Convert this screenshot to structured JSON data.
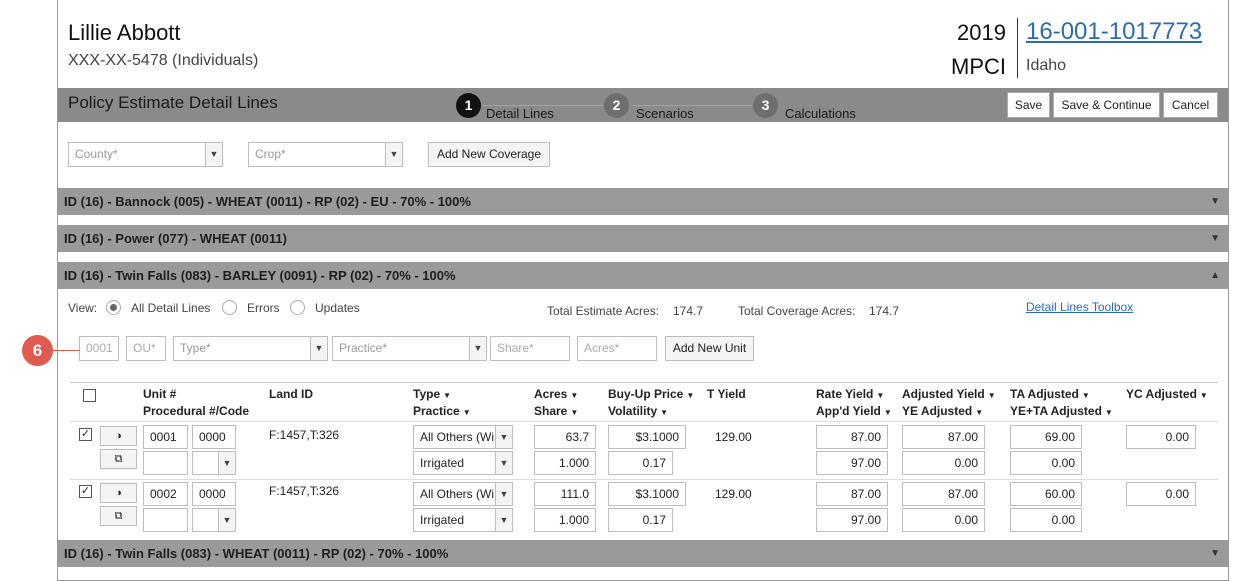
{
  "client": {
    "name": "Lillie Abbott",
    "ssn": "XXX-XX-5478 (Individuals)",
    "year": "2019",
    "plan": "MPCI",
    "policy_number": "16-001-1017773",
    "state": "Idaho"
  },
  "title_bar": {
    "title": "Policy Estimate Detail Lines",
    "steps": [
      {
        "num": "1",
        "label": "Detail Lines",
        "active": true
      },
      {
        "num": "2",
        "label": "Scenarios",
        "active": false
      },
      {
        "num": "3",
        "label": "Calculations",
        "active": false
      }
    ],
    "buttons": {
      "save": "Save",
      "save_continue": "Save & Continue",
      "cancel": "Cancel"
    }
  },
  "coverage_form": {
    "county_placeholder": "County*",
    "crop_placeholder": "Crop*",
    "add_coverage": "Add New Coverage"
  },
  "accordions": {
    "a1": "ID (16) - Bannock (005) - WHEAT (0011) - RP (02) - EU - 70% - 100%",
    "a2": "ID (16) - Power (077) - WHEAT (0011)",
    "a3": "ID (16) - Twin Falls (083) - BARLEY (0091) - RP (02) - 70% - 100%",
    "a4": "ID (16) - Twin Falls (083) - WHEAT (0011) - RP (02) - 70% - 100%"
  },
  "view": {
    "label": "View:",
    "options": [
      "All Detail Lines",
      "Errors",
      "Updates"
    ],
    "selected": "All Detail Lines",
    "total_estimate_label": "Total Estimate Acres:",
    "total_estimate_value": "174.7",
    "total_coverage_label": "Total Coverage Acres:",
    "total_coverage_value": "174.7",
    "toolbox_link": "Detail Lines Toolbox"
  },
  "unit_form": {
    "unit_value": "0001",
    "ou_placeholder": "OU*",
    "type_placeholder": "Type*",
    "practice_placeholder": "Practice*",
    "share_placeholder": "Share*",
    "acres_placeholder": "Acres*",
    "add_unit": "Add New Unit"
  },
  "callout": "6",
  "table": {
    "headers": {
      "unit": "Unit #",
      "procedural": "Procedural #/Code",
      "land_id": "Land ID",
      "type": "Type",
      "practice": "Practice",
      "acres": "Acres",
      "share": "Share",
      "buyup": "Buy-Up Price",
      "volatility": "Volatility",
      "t_yield": "T Yield",
      "rate_yield": "Rate Yield",
      "appd_yield": "App'd Yield",
      "adj_yield": "Adjusted Yield",
      "ye_adj": "YE Adjusted",
      "ta_adj": "TA Adjusted",
      "ye_ta_adj": "YE+TA Adjusted",
      "yc_adj": "YC Adjusted"
    },
    "rows": [
      {
        "unit": "0001",
        "ou": "0000",
        "land_id": "F:1457,T:326",
        "type": "All Others (Wi",
        "practice": "Irrigated",
        "acres": "63.7",
        "share": "1.000",
        "buyup": "$3.1000",
        "volatility": "0.17",
        "t_yield": "129.00",
        "rate_yield": "87.00",
        "appd_yield": "97.00",
        "adj_yield": "87.00",
        "ye_adj": "0.00",
        "ta_adj": "69.00",
        "ye_ta_adj": "0.00",
        "yc_adj": "0.00"
      },
      {
        "unit": "0002",
        "ou": "0000",
        "land_id": "F:1457,T:326",
        "type": "All Others (Wi",
        "practice": "Irrigated",
        "acres": "111.0",
        "share": "1.000",
        "buyup": "$3.1000",
        "volatility": "0.17",
        "t_yield": "129.00",
        "rate_yield": "87.00",
        "appd_yield": "97.00",
        "adj_yield": "87.00",
        "ye_adj": "0.00",
        "ta_adj": "60.00",
        "ye_ta_adj": "0.00",
        "yc_adj": "0.00"
      }
    ]
  }
}
